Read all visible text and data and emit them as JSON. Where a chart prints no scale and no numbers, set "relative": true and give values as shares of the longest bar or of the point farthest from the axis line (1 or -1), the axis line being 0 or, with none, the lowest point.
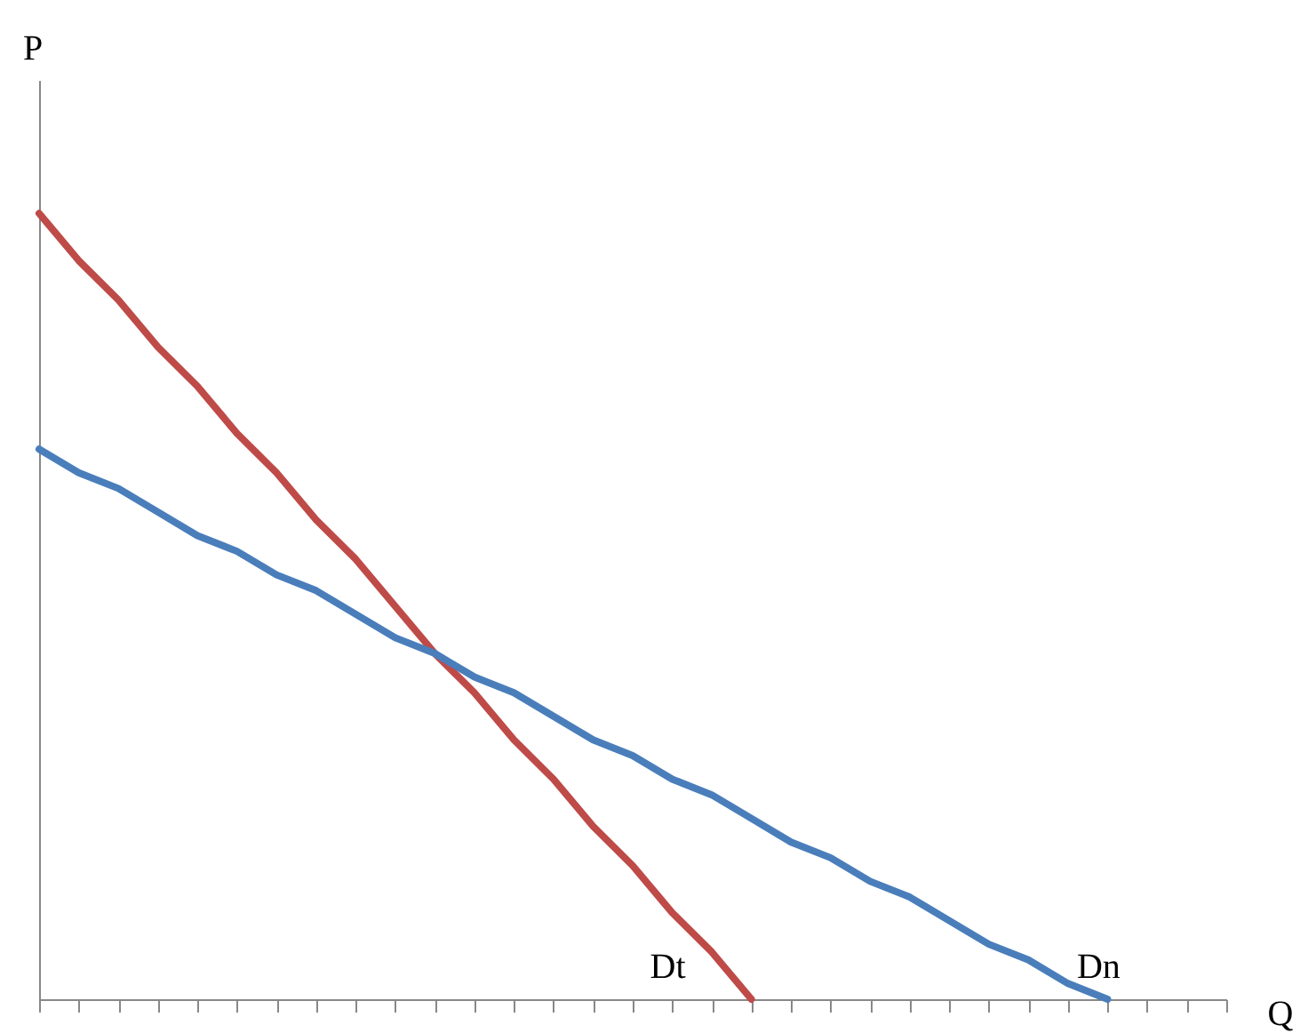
{
  "chart_data": {
    "type": "line",
    "relative": true,
    "xlabel": "Q",
    "ylabel": "P",
    "categories": [
      null,
      null,
      null,
      null,
      null,
      null,
      null,
      null,
      null,
      null,
      null,
      null,
      null,
      null,
      null,
      null,
      null,
      null,
      null,
      null,
      null,
      null,
      null,
      null,
      null,
      null,
      null,
      null,
      null,
      null,
      null
    ],
    "series": [
      {
        "name": "Dt",
        "color": "#be4b48",
        "values": [
          1.0,
          0.94,
          0.89,
          0.83,
          0.78,
          0.72,
          0.67,
          0.61,
          0.56,
          0.5,
          0.44,
          0.39,
          0.33,
          0.28,
          0.22,
          0.17,
          0.11,
          0.06,
          0.0,
          null,
          null,
          null,
          null,
          null,
          null,
          null,
          null,
          null,
          null,
          null,
          null
        ]
      },
      {
        "name": "Dn",
        "color": "#4a7ebb",
        "values": [
          0.7,
          0.67,
          0.65,
          0.62,
          0.59,
          0.57,
          0.54,
          0.52,
          0.49,
          0.46,
          0.44,
          0.41,
          0.39,
          0.36,
          0.33,
          0.31,
          0.28,
          0.26,
          0.23,
          0.2,
          0.18,
          0.15,
          0.13,
          0.1,
          0.07,
          0.05,
          0.02,
          0.0,
          null,
          null,
          null
        ]
      }
    ]
  }
}
